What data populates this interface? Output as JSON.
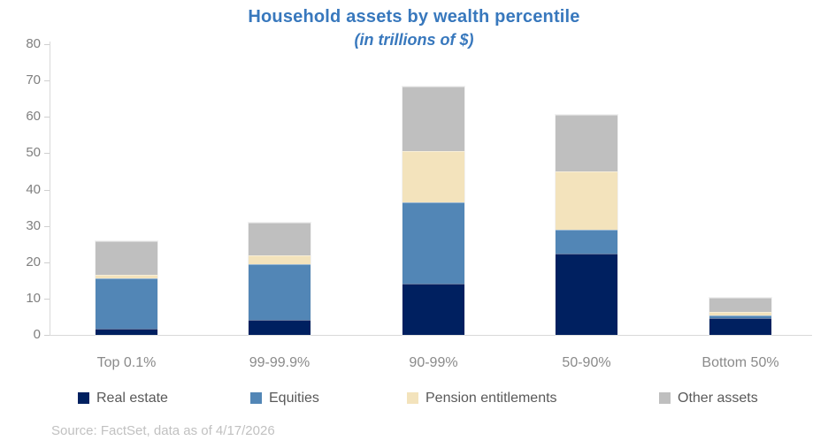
{
  "title": "Household assets by wealth percentile",
  "subtitle": "(in trillions of $)",
  "source": "Source: FactSet, data as of 4/17/2026",
  "colors": {
    "title_blue": "#3878bd",
    "real_estate": "#002060",
    "equities": "#5286b6",
    "pension": "#f3e3bc",
    "other": "#bfbfbf",
    "axis_gray": "#d9d9d9",
    "tick_label_gray": "#7f7f7f",
    "category_label_gray": "#8a8a8a",
    "legend_text_gray": "#595959",
    "source_gray": "#c1c1c1"
  },
  "chart_data": {
    "type": "bar",
    "stacked": true,
    "title": "Household assets by wealth percentile",
    "subtitle": "(in trillions of $)",
    "xlabel": "",
    "ylabel": "",
    "ylim": [
      0,
      80
    ],
    "yticks": [
      0,
      10,
      20,
      30,
      40,
      50,
      60,
      70,
      80
    ],
    "grid": false,
    "legend_position": "bottom",
    "categories": [
      "Top 0.1%",
      "99-99.9%",
      "90-99%",
      "50-90%",
      "Bottom 50%"
    ],
    "series": [
      {
        "name": "Real estate",
        "color": "#002060",
        "values": [
          1.8,
          4.2,
          14.2,
          22.4,
          4.5
        ]
      },
      {
        "name": "Equities",
        "color": "#5286b6",
        "values": [
          13.8,
          15.2,
          22.3,
          6.6,
          0.9
        ]
      },
      {
        "name": "Pension entitlements",
        "color": "#f3e3bc",
        "values": [
          0.9,
          2.5,
          14.0,
          16.0,
          1.0
        ]
      },
      {
        "name": "Other assets",
        "color": "#bfbfbf",
        "values": [
          9.3,
          9.1,
          17.9,
          15.5,
          3.7
        ]
      }
    ],
    "totals": [
      25.8,
      31.0,
      68.4,
      60.5,
      10.1
    ]
  }
}
